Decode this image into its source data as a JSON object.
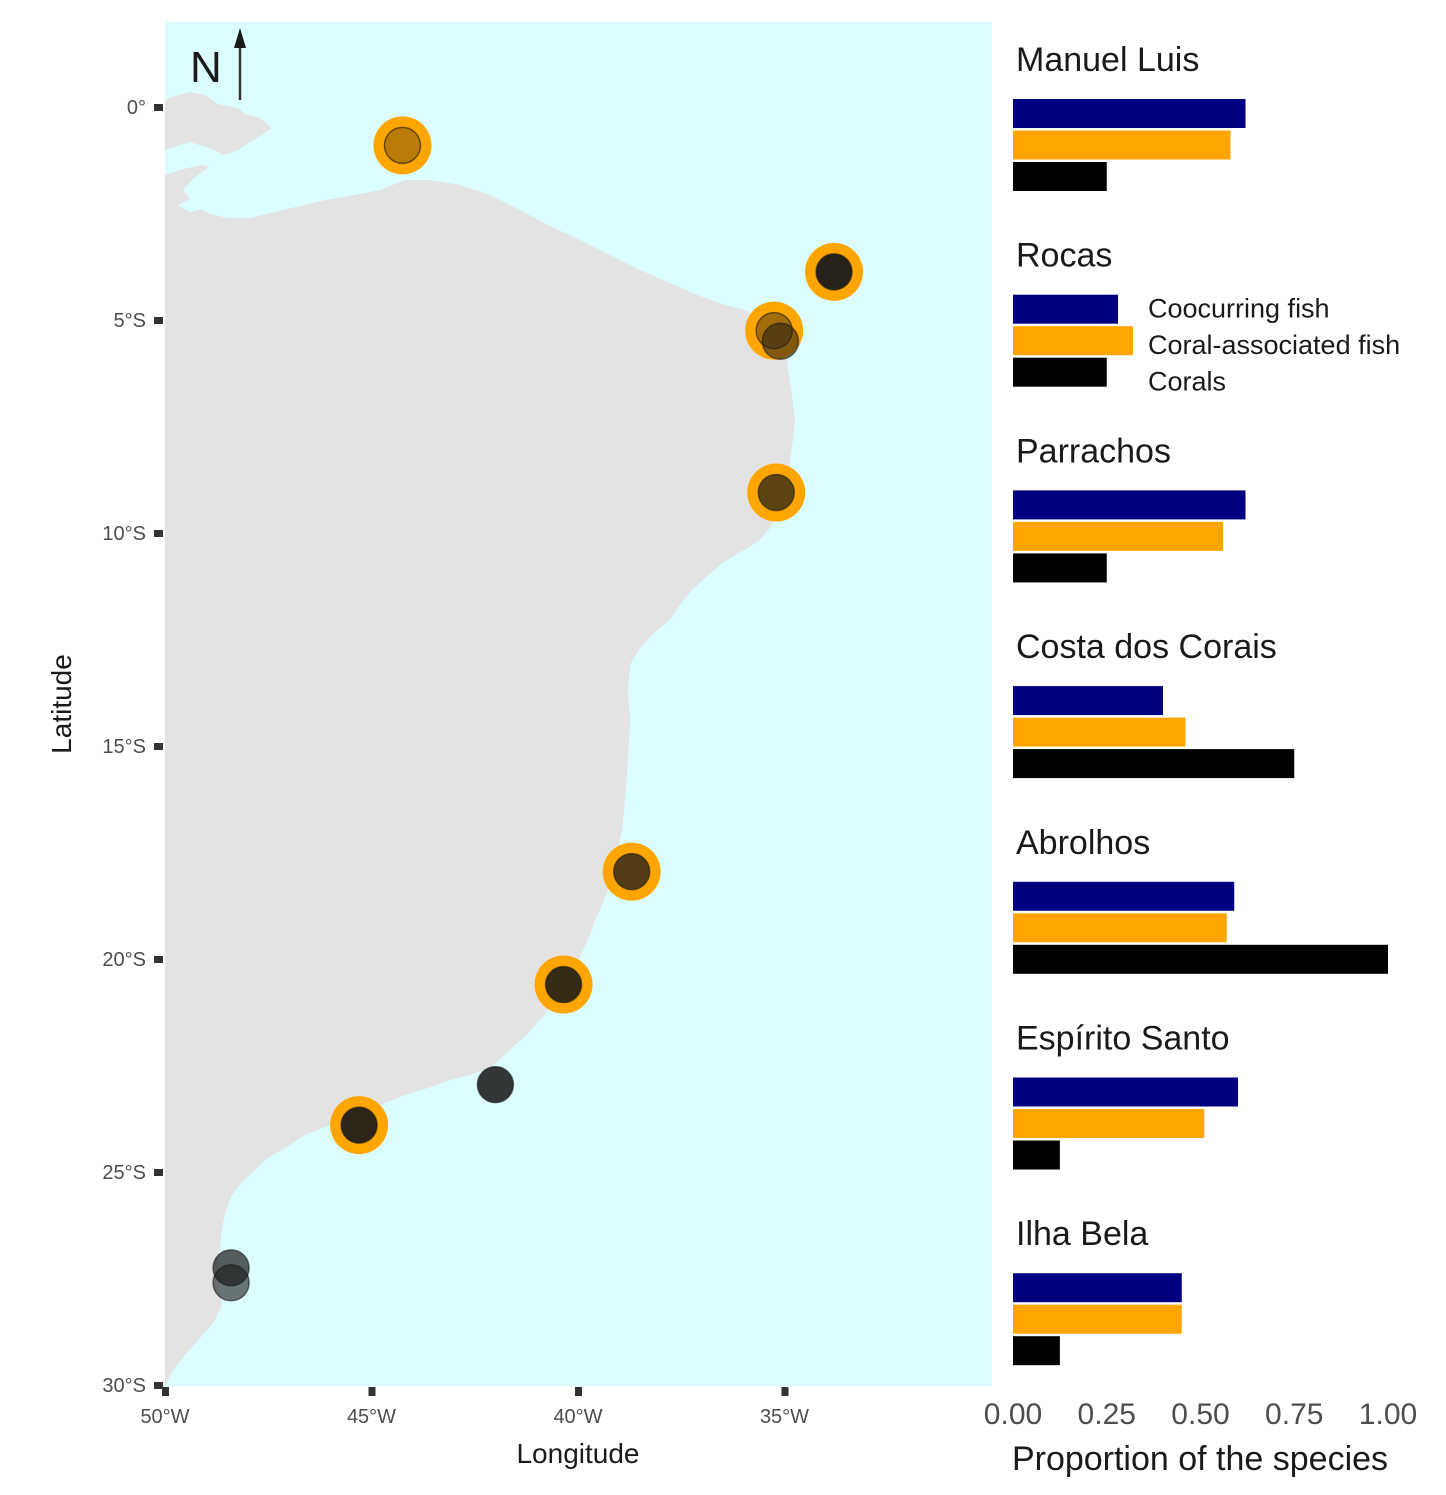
{
  "map": {
    "north_label": "N",
    "xlabel": "Longitude",
    "ylabel": "Latitude",
    "xlim": [
      -50,
      -30
    ],
    "ylim": [
      -30,
      2
    ],
    "x_ticks": [
      {
        "value": -50,
        "label": "50°W"
      },
      {
        "value": -45,
        "label": "45°W"
      },
      {
        "value": -40,
        "label": "40°W"
      },
      {
        "value": -35,
        "label": "35°W"
      }
    ],
    "y_ticks": [
      {
        "value": 0,
        "label": "0°"
      },
      {
        "value": -5,
        "label": "5°S"
      },
      {
        "value": -10,
        "label": "10°S"
      },
      {
        "value": -15,
        "label": "15°S"
      },
      {
        "value": -20,
        "label": "20°S"
      },
      {
        "value": -25,
        "label": "25°S"
      },
      {
        "value": -30,
        "label": "30°S"
      }
    ],
    "colors": {
      "ocean": "#dcfdfe",
      "land": "#e3e3e3",
      "highlight_ring": "#ffa500",
      "point": "#1a1a1a"
    },
    "sites": [
      {
        "lon": -44.25,
        "lat": -0.9,
        "highlight": true,
        "opacity": 0.3
      },
      {
        "lon": -33.8,
        "lat": -3.87,
        "highlight": true,
        "opacity": 0.95
      },
      {
        "lon": -35.25,
        "lat": -5.25,
        "highlight": true,
        "opacity": 0.4
      },
      {
        "lon": -35.1,
        "lat": -5.5,
        "highlight": false,
        "opacity": 0.55
      },
      {
        "lon": -35.2,
        "lat": -9.05,
        "highlight": true,
        "opacity": 0.7
      },
      {
        "lon": -38.7,
        "lat": -17.95,
        "highlight": true,
        "opacity": 0.75
      },
      {
        "lon": -40.35,
        "lat": -20.6,
        "highlight": true,
        "opacity": 0.88
      },
      {
        "lon": -42.0,
        "lat": -22.95,
        "highlight": false,
        "opacity": 0.88
      },
      {
        "lon": -45.3,
        "lat": -23.9,
        "highlight": true,
        "opacity": 0.92
      },
      {
        "lon": -48.4,
        "lat": -27.25,
        "highlight": false,
        "opacity": 0.7
      },
      {
        "lon": -48.4,
        "lat": -27.6,
        "highlight": false,
        "opacity": 0.6
      }
    ]
  },
  "chart_data": {
    "type": "bar",
    "orientation": "horizontal",
    "xlabel": "Proportion of the species",
    "xlim": [
      0,
      1
    ],
    "x_ticks": [
      "0.00",
      "0.25",
      "0.50",
      "0.75",
      "1.00"
    ],
    "legend": {
      "placement": "inside Rocas panel, right",
      "entries": [
        "Coocurring fish",
        "Coral-associated fish",
        "Corals"
      ]
    },
    "series_colors": [
      "#000080",
      "#ffa500",
      "#000000"
    ],
    "categories": [
      "Manuel Luis",
      "Rocas",
      "Parrachos",
      "Costa dos Corais",
      "Abrolhos",
      "Espírito Santo",
      "Ilha Bela"
    ],
    "series": [
      {
        "name": "Coocurring fish",
        "values": [
          0.62,
          0.28,
          0.62,
          0.4,
          0.59,
          0.6,
          0.45
        ]
      },
      {
        "name": "Coral-associated fish",
        "values": [
          0.58,
          0.32,
          0.56,
          0.46,
          0.57,
          0.51,
          0.45
        ]
      },
      {
        "name": "Corals",
        "values": [
          0.25,
          0.25,
          0.25,
          0.75,
          1.0,
          0.125,
          0.125
        ]
      }
    ]
  }
}
